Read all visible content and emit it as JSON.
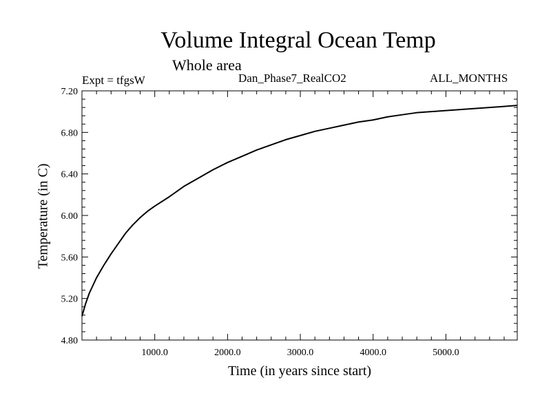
{
  "chart_data": {
    "type": "line",
    "title": "Volume Integral Ocean Temp",
    "subtitle": "Whole area",
    "experiment_label": "Expt = tfgsW",
    "experiment_name": "Dan_Phase7_RealCO2",
    "period": "ALL_MONTHS",
    "xlabel": "Time (in years since start)",
    "ylabel": "Temperature (in C)",
    "xlim": [
      0,
      5980
    ],
    "ylim": [
      4.8,
      7.2
    ],
    "xticks": [
      {
        "value": 1000,
        "label": "1000.0"
      },
      {
        "value": 2000,
        "label": "2000.0"
      },
      {
        "value": 3000,
        "label": "3000.0"
      },
      {
        "value": 4000,
        "label": "4000.0"
      },
      {
        "value": 5000,
        "label": "5000.0"
      }
    ],
    "yticks": [
      {
        "value": 4.8,
        "label": "4.80"
      },
      {
        "value": 5.2,
        "label": "5.20"
      },
      {
        "value": 5.6,
        "label": "5.60"
      },
      {
        "value": 6.0,
        "label": "6.00"
      },
      {
        "value": 6.4,
        "label": "6.40"
      },
      {
        "value": 6.8,
        "label": "6.80"
      },
      {
        "value": 7.2,
        "label": "7.20"
      }
    ],
    "series": [
      {
        "name": "Volume Integral Ocean Temp",
        "color": "#000000",
        "x": [
          0,
          50,
          100,
          200,
          300,
          400,
          500,
          600,
          700,
          800,
          900,
          1000,
          1200,
          1400,
          1600,
          1800,
          2000,
          2200,
          2400,
          2600,
          2800,
          3000,
          3200,
          3400,
          3600,
          3800,
          4000,
          4200,
          4400,
          4600,
          4800,
          5000,
          5200,
          5400,
          5600,
          5800,
          5980
        ],
        "y": [
          5.03,
          5.15,
          5.25,
          5.4,
          5.52,
          5.63,
          5.73,
          5.83,
          5.91,
          5.98,
          6.04,
          6.09,
          6.18,
          6.28,
          6.36,
          6.44,
          6.51,
          6.57,
          6.63,
          6.68,
          6.73,
          6.77,
          6.81,
          6.84,
          6.87,
          6.9,
          6.92,
          6.95,
          6.97,
          6.99,
          7.0,
          7.01,
          7.02,
          7.03,
          7.04,
          7.05,
          7.06
        ]
      }
    ]
  }
}
